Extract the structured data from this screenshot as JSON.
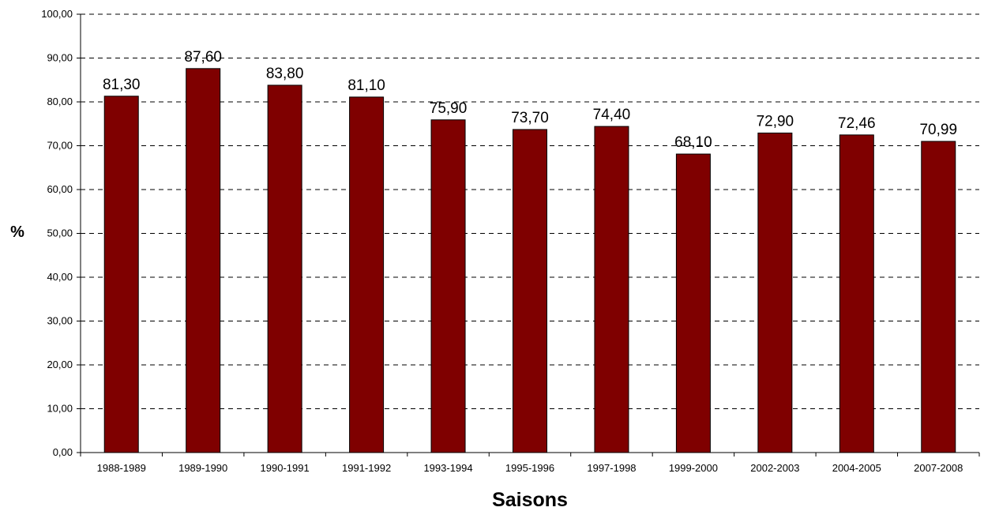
{
  "chart_data": {
    "type": "bar",
    "categories": [
      "1988-1989",
      "1989-1990",
      "1990-1991",
      "1991-1992",
      "1993-1994",
      "1995-1996",
      "1997-1998",
      "1999-2000",
      "2002-2003",
      "2004-2005",
      "2007-2008"
    ],
    "values": [
      81.3,
      87.6,
      83.8,
      81.1,
      75.9,
      73.7,
      74.4,
      68.1,
      72.9,
      72.46,
      70.99
    ],
    "value_labels": [
      "81,30",
      "87,60",
      "83,80",
      "81,10",
      "75,90",
      "73,70",
      "74,40",
      "68,10",
      "72,90",
      "72,46",
      "70,99"
    ],
    "y_ticks": [
      0,
      10,
      20,
      30,
      40,
      50,
      60,
      70,
      80,
      90,
      100
    ],
    "y_tick_labels": [
      "0,00",
      "10,00",
      "20,00",
      "30,00",
      "40,00",
      "50,00",
      "60,00",
      "70,00",
      "80,00",
      "90,00",
      "100,00"
    ],
    "ylim": [
      0,
      100
    ],
    "xlabel": "Saisons",
    "ylabel": "%",
    "bar_color": "#7f0000",
    "grid": "horizontal-dashed",
    "legend": "none"
  }
}
